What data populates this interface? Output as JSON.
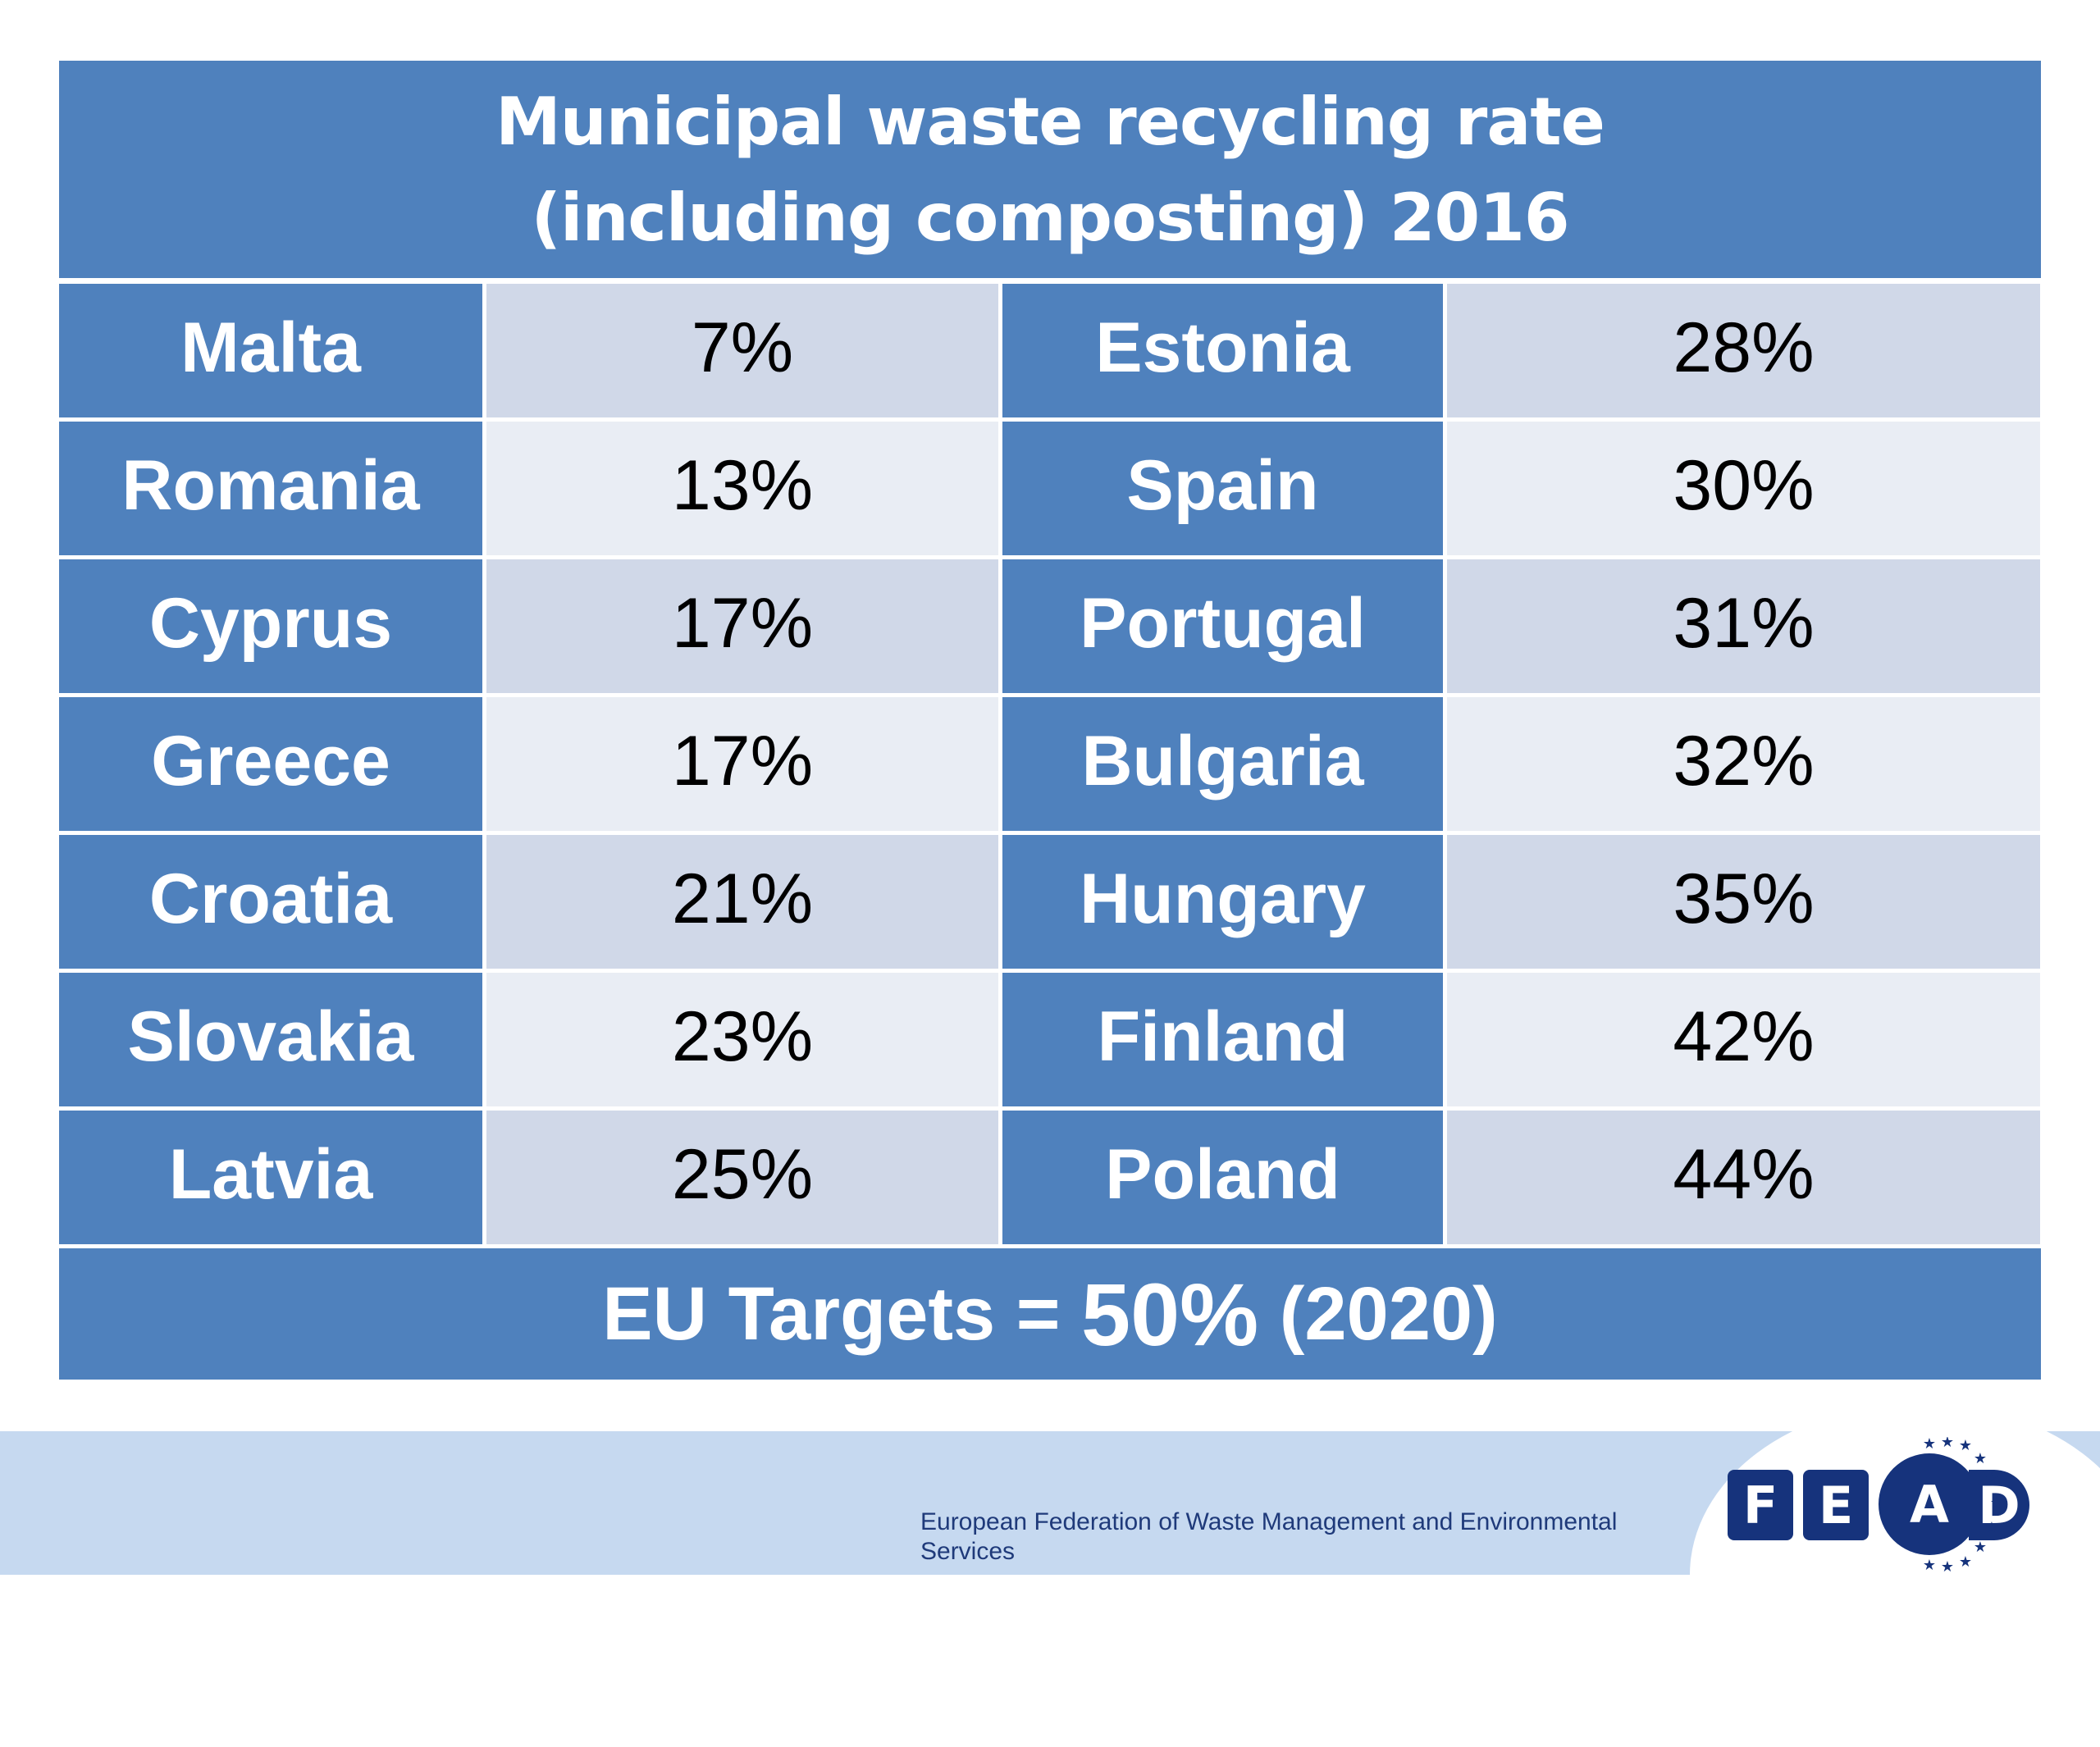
{
  "title": {
    "line1": "Municipal waste recycling rate",
    "line2": "(including composting) 2016"
  },
  "rows": [
    {
      "left_country": "Malta",
      "left_value": "7%",
      "right_country": "Estonia",
      "right_value": "28%"
    },
    {
      "left_country": "Romania",
      "left_value": "13%",
      "right_country": "Spain",
      "right_value": "30%"
    },
    {
      "left_country": "Cyprus",
      "left_value": "17%",
      "right_country": "Portugal",
      "right_value": "31%"
    },
    {
      "left_country": "Greece",
      "left_value": "17%",
      "right_country": "Bulgaria",
      "right_value": "32%"
    },
    {
      "left_country": "Croatia",
      "left_value": "21%",
      "right_country": "Hungary",
      "right_value": "35%"
    },
    {
      "left_country": "Slovakia",
      "left_value": "23%",
      "right_country": "Finland",
      "right_value": "42%"
    },
    {
      "left_country": "Latvia",
      "left_value": "25%",
      "right_country": "Poland",
      "right_value": "44%"
    }
  ],
  "target": {
    "prefix": "EU Targets = ",
    "value": "50%",
    "suffix": " (2020)"
  },
  "footer": {
    "organization": "European Federation of Waste Management and  Environmental Services",
    "logo_letters": [
      "F",
      "E",
      "A",
      "D"
    ]
  },
  "colors": {
    "header_blue": "#4f81bd",
    "cell_dark": "#d0d8e8",
    "cell_light": "#e9edf4",
    "band": "#c6d9f0",
    "logo_navy": "#16337c"
  }
}
